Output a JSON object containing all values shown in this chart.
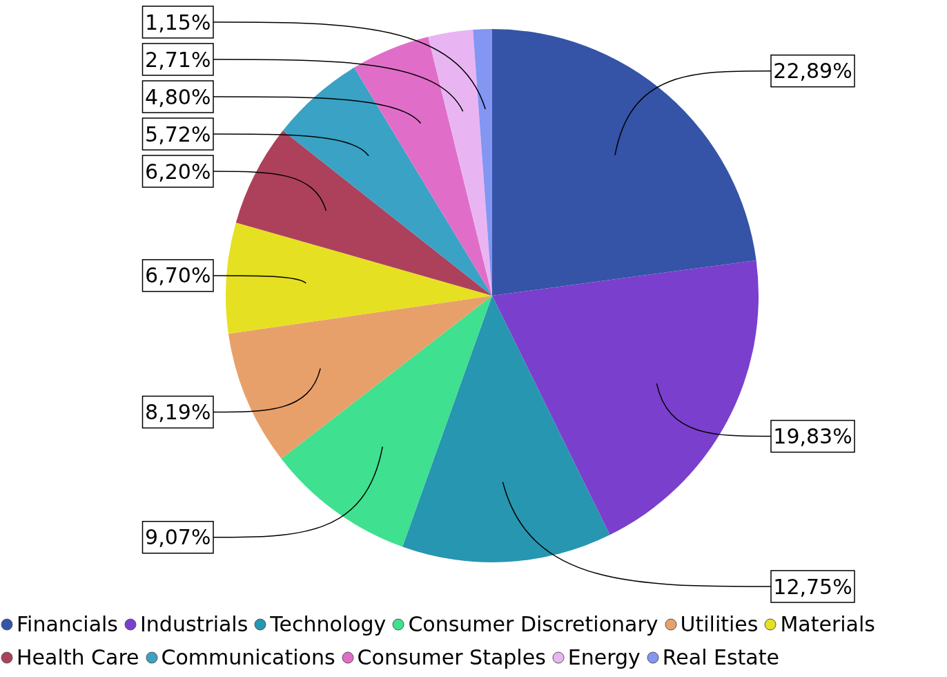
{
  "chart_data": {
    "type": "pie",
    "categories": [
      "Financials",
      "Industrials",
      "Technology",
      "Consumer Discretionary",
      "Utilities",
      "Materials",
      "Health Care",
      "Communications",
      "Consumer Staples",
      "Energy",
      "Real Estate"
    ],
    "values": [
      22.89,
      19.83,
      12.75,
      9.07,
      8.19,
      6.7,
      6.2,
      5.72,
      4.8,
      2.71,
      1.15
    ],
    "value_labels": [
      "22,89%",
      "19,83%",
      "12,75%",
      "9,07%",
      "8,19%",
      "6,70%",
      "6,20%",
      "5,72%",
      "4,80%",
      "2,71%",
      "1,15%"
    ],
    "colors": [
      "#3554a8",
      "#7a3fcc",
      "#2796b0",
      "#3fe08f",
      "#e8a06b",
      "#e6e022",
      "#ad415b",
      "#3aa2c4",
      "#e06ec9",
      "#e8b5f2",
      "#8296f2"
    ],
    "legend": "bottom"
  }
}
